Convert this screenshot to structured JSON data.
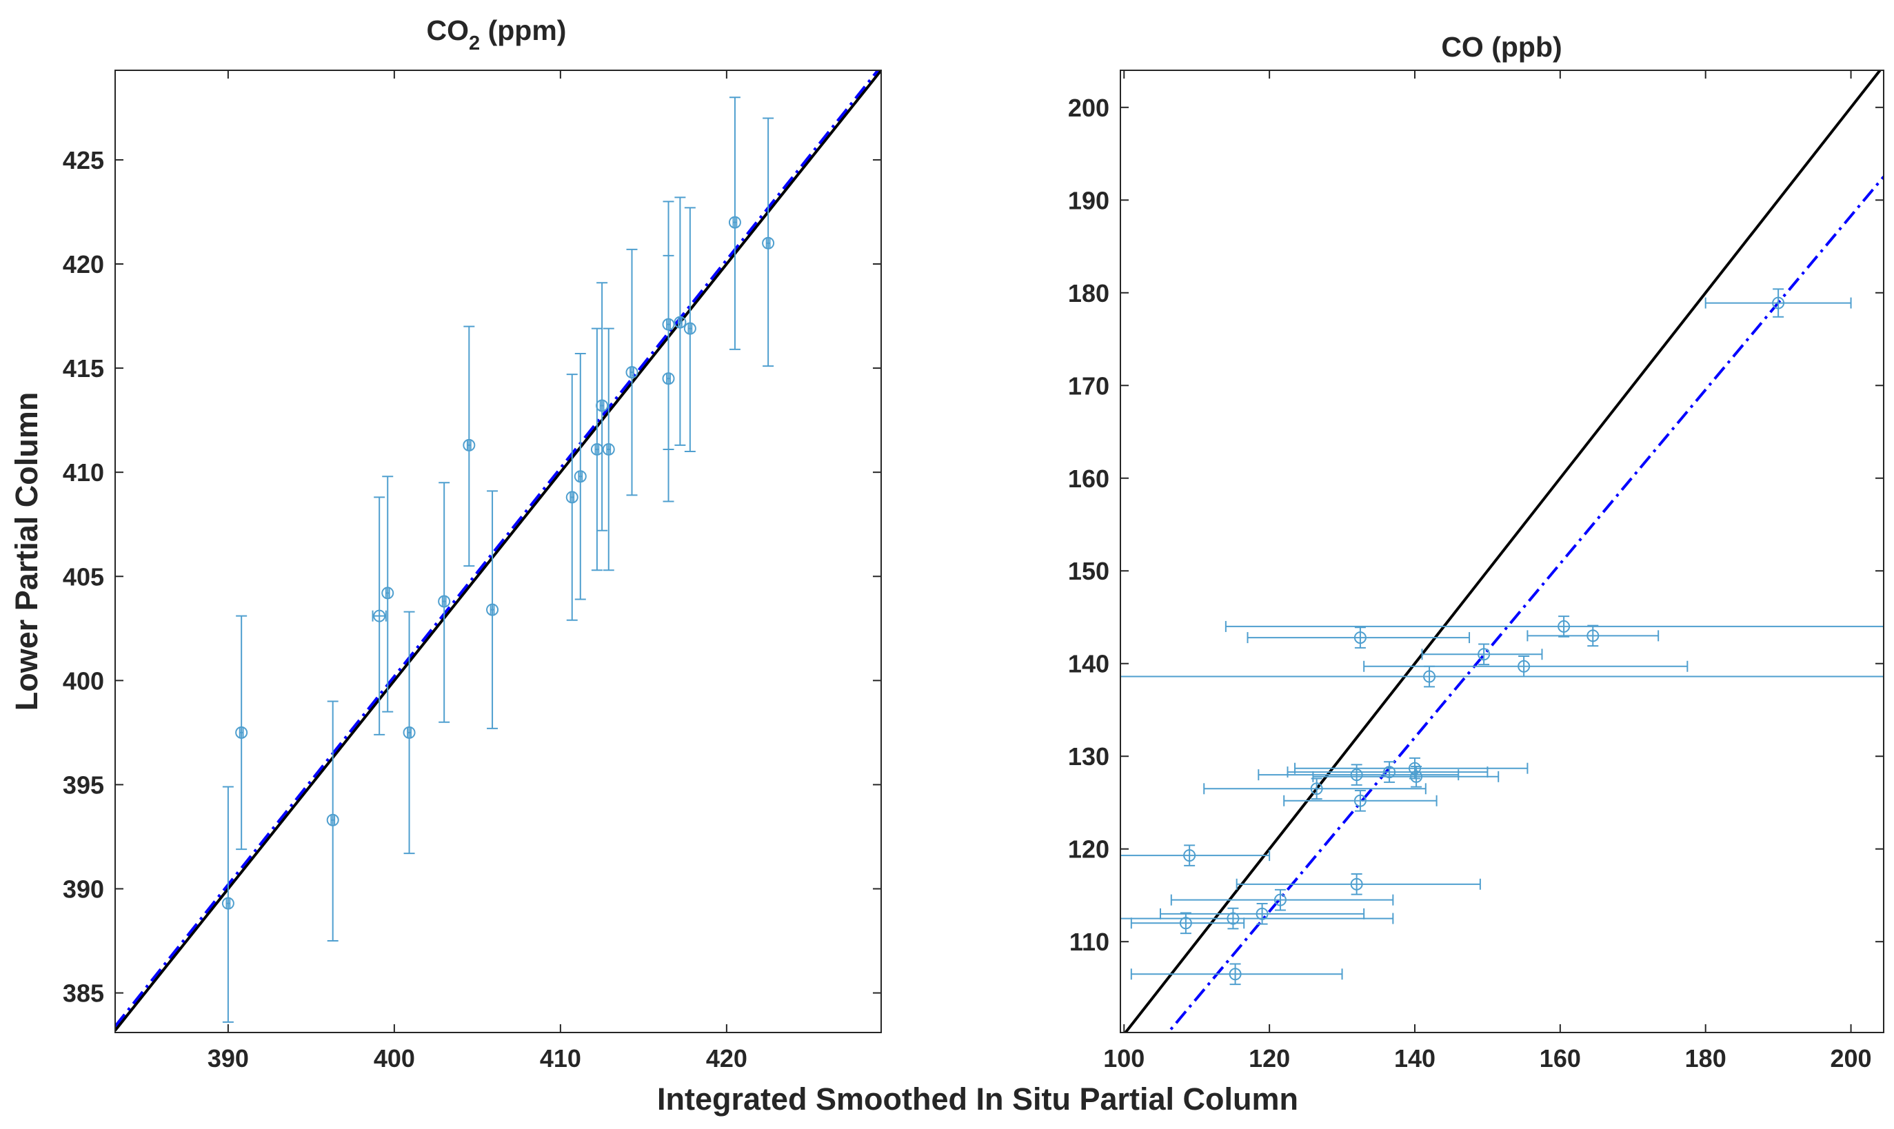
{
  "figure": {
    "xlabel": "Integrated Smoothed In Situ Partial Column",
    "ylabel": "Lower Partial Column"
  },
  "colors": {
    "points": "#4f9fcf",
    "identity_line": "#000000",
    "fit_line": "#0000ff"
  },
  "chart_data": [
    {
      "type": "scatter",
      "title_main": "CO",
      "title_sub": "2",
      "title_rest": " (ppm)",
      "xlim": [
        383.2,
        429.3
      ],
      "ylim": [
        383.1,
        429.3
      ],
      "xticks": [
        390,
        400,
        410,
        420
      ],
      "yticks": [
        385,
        390,
        395,
        400,
        405,
        410,
        415,
        420,
        425
      ],
      "grid": false,
      "lines": [
        {
          "style": "solid",
          "color": "#000000",
          "slope": 1.0,
          "intercept": 0.0
        },
        {
          "style": "dashdot",
          "color": "#0000ff",
          "slope": 1.0,
          "intercept": 0.2
        }
      ],
      "series": [
        {
          "points": [
            {
              "x": 390.0,
              "y": 389.3,
              "xerr": 0.1,
              "ylo": 383.6,
              "yhi": 394.9
            },
            {
              "x": 390.8,
              "y": 397.5,
              "xerr": 0.1,
              "ylo": 391.9,
              "yhi": 403.1
            },
            {
              "x": 396.3,
              "y": 393.3,
              "xerr": 0.1,
              "ylo": 387.5,
              "yhi": 399.0
            },
            {
              "x": 399.1,
              "y": 403.1,
              "xerr": 0.4,
              "ylo": 397.4,
              "yhi": 408.8
            },
            {
              "x": 399.6,
              "y": 404.2,
              "xerr": 0.1,
              "ylo": 398.5,
              "yhi": 409.8
            },
            {
              "x": 400.9,
              "y": 397.5,
              "xerr": 0.1,
              "ylo": 391.7,
              "yhi": 403.3
            },
            {
              "x": 403.0,
              "y": 403.8,
              "xerr": 0.1,
              "ylo": 398.0,
              "yhi": 409.5
            },
            {
              "x": 404.5,
              "y": 411.3,
              "xerr": 0.1,
              "ylo": 405.5,
              "yhi": 417.0
            },
            {
              "x": 405.9,
              "y": 403.4,
              "xerr": 0.1,
              "ylo": 397.7,
              "yhi": 409.1
            },
            {
              "x": 410.7,
              "y": 408.8,
              "xerr": 0.1,
              "ylo": 402.9,
              "yhi": 414.7
            },
            {
              "x": 411.2,
              "y": 409.8,
              "xerr": 0.1,
              "ylo": 403.9,
              "yhi": 415.7
            },
            {
              "x": 412.2,
              "y": 411.1,
              "xerr": 0.1,
              "ylo": 405.3,
              "yhi": 416.9
            },
            {
              "x": 412.5,
              "y": 413.2,
              "xerr": 0.1,
              "ylo": 407.2,
              "yhi": 419.1
            },
            {
              "x": 412.9,
              "y": 411.1,
              "xerr": 0.1,
              "ylo": 405.3,
              "yhi": 416.9
            },
            {
              "x": 414.3,
              "y": 414.8,
              "xerr": 0.1,
              "ylo": 408.9,
              "yhi": 420.7
            },
            {
              "x": 416.5,
              "y": 417.1,
              "xerr": 0.1,
              "ylo": 411.1,
              "yhi": 423.0
            },
            {
              "x": 416.5,
              "y": 414.5,
              "xerr": 0.1,
              "ylo": 408.6,
              "yhi": 420.4
            },
            {
              "x": 417.2,
              "y": 417.2,
              "xerr": 0.1,
              "ylo": 411.3,
              "yhi": 423.2
            },
            {
              "x": 417.8,
              "y": 416.9,
              "xerr": 0.1,
              "ylo": 411.0,
              "yhi": 422.7
            },
            {
              "x": 420.5,
              "y": 422.0,
              "xerr": 0.1,
              "ylo": 415.9,
              "yhi": 428.0
            },
            {
              "x": 422.5,
              "y": 421.0,
              "xerr": 0.1,
              "ylo": 415.1,
              "yhi": 427.0
            }
          ]
        }
      ]
    },
    {
      "type": "scatter",
      "title_main": "CO (ppb)",
      "title_sub": "",
      "title_rest": "",
      "xlim": [
        99.5,
        204.5
      ],
      "ylim": [
        100.2,
        204.0
      ],
      "xticks": [
        100,
        120,
        140,
        160,
        180,
        200
      ],
      "yticks": [
        110,
        120,
        130,
        140,
        150,
        160,
        170,
        180,
        190,
        200
      ],
      "grid": false,
      "lines": [
        {
          "style": "solid",
          "color": "#000000",
          "slope": 1.0,
          "intercept": 0.0
        },
        {
          "style": "dashdot",
          "color": "#0000ff",
          "slope": 0.938,
          "intercept": 0.7
        }
      ],
      "series": [
        {
          "points": [
            {
              "x": 108.5,
              "y": 112.0,
              "xlo": 101.0,
              "xhi": 116.5,
              "yerr": 1.1
            },
            {
              "x": 109.0,
              "y": 119.3,
              "xlo": 99.5,
              "xhi": 120.0,
              "yerr": 1.1
            },
            {
              "x": 115.0,
              "y": 112.5,
              "xlo": 99.5,
              "xhi": 137.0,
              "yerr": 1.1
            },
            {
              "x": 115.3,
              "y": 106.5,
              "xlo": 101.0,
              "xhi": 130.0,
              "yerr": 1.1
            },
            {
              "x": 119.0,
              "y": 113.0,
              "xlo": 105.0,
              "xhi": 133.0,
              "yerr": 1.1
            },
            {
              "x": 121.5,
              "y": 114.5,
              "xlo": 106.5,
              "xhi": 137.0,
              "yerr": 1.1
            },
            {
              "x": 126.5,
              "y": 126.5,
              "xlo": 111.0,
              "xhi": 141.5,
              "yerr": 1.1
            },
            {
              "x": 132.0,
              "y": 116.2,
              "xlo": 115.5,
              "xhi": 149.0,
              "yerr": 1.1
            },
            {
              "x": 132.5,
              "y": 142.8,
              "xlo": 117.0,
              "xhi": 147.5,
              "yerr": 1.1
            },
            {
              "x": 132.0,
              "y": 128.0,
              "xlo": 118.5,
              "xhi": 146.0,
              "yerr": 1.1
            },
            {
              "x": 132.5,
              "y": 125.2,
              "xlo": 122.0,
              "xhi": 143.0,
              "yerr": 1.1
            },
            {
              "x": 136.5,
              "y": 128.3,
              "xlo": 122.5,
              "xhi": 150.0,
              "yerr": 1.1
            },
            {
              "x": 140.0,
              "y": 128.7,
              "xlo": 123.5,
              "xhi": 155.5,
              "yerr": 1.1
            },
            {
              "x": 140.2,
              "y": 127.8,
              "xlo": 126.0,
              "xhi": 151.5,
              "yerr": 1.1
            },
            {
              "x": 142.0,
              "y": 138.6,
              "xlo": 99.5,
              "xhi": 204.5,
              "yerr": 1.1
            },
            {
              "x": 149.5,
              "y": 141.0,
              "xlo": 141.0,
              "xhi": 157.5,
              "yerr": 1.1
            },
            {
              "x": 155.0,
              "y": 139.7,
              "xlo": 133.0,
              "xhi": 177.5,
              "yerr": 1.1
            },
            {
              "x": 160.5,
              "y": 144.0,
              "xlo": 114.0,
              "xhi": 204.5,
              "yerr": 1.1
            },
            {
              "x": 164.5,
              "y": 143.0,
              "xlo": 155.5,
              "xhi": 173.5,
              "yerr": 1.1
            },
            {
              "x": 190.0,
              "y": 178.9,
              "xlo": 180.0,
              "xhi": 200.0,
              "yerr": 1.5
            }
          ]
        }
      ]
    }
  ]
}
